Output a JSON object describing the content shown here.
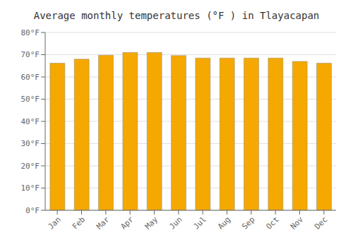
{
  "chart_data": {
    "type": "bar",
    "title": "Average monthly temperatures (°F ) in Tlayacapan",
    "categories": [
      "Jan",
      "Feb",
      "Mar",
      "Apr",
      "May",
      "Jun",
      "Jul",
      "Aug",
      "Sep",
      "Oct",
      "Nov",
      "Dec"
    ],
    "values": [
      66.2,
      68.0,
      69.8,
      71.0,
      71.0,
      69.6,
      68.5,
      68.5,
      68.5,
      68.5,
      67.0,
      66.2
    ],
    "color": "#F5A800",
    "ylim": [
      0,
      80
    ],
    "yticks": [
      {
        "value": 0,
        "label": "0°F"
      },
      {
        "value": 10,
        "label": "10°F"
      },
      {
        "value": 20,
        "label": "20°F"
      },
      {
        "value": 30,
        "label": "30°F"
      },
      {
        "value": 40,
        "label": "40°F"
      },
      {
        "value": 50,
        "label": "50°F"
      },
      {
        "value": 60,
        "label": "60°F"
      },
      {
        "value": 70,
        "label": "70°F"
      },
      {
        "value": 80,
        "label": "80°F"
      }
    ],
    "grid": true
  }
}
